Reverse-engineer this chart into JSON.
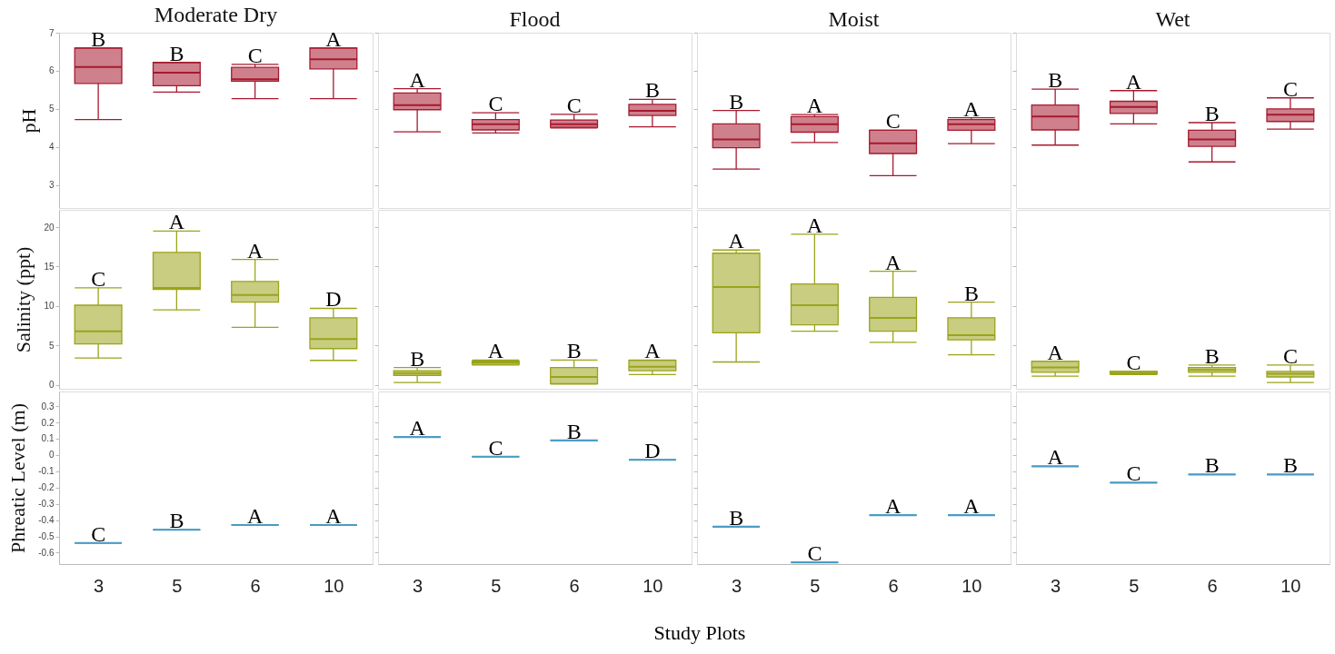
{
  "chart_data": [
    {
      "type": "box",
      "title": "Moderate Dry",
      "ylabel": "pH",
      "categories": [
        "3",
        "5",
        "6",
        "10"
      ],
      "ylim": [
        2.4,
        7
      ],
      "yticks": [
        3,
        4,
        5,
        6,
        7
      ],
      "tick_labels": "y",
      "series": [
        {
          "color": "#a6192e",
          "boxes": [
            {
              "low": 4.72,
              "q1": 5.67,
              "median": 6.1,
              "q3": 6.6,
              "high": 6.6
            },
            {
              "low": 5.44,
              "q1": 5.61,
              "median": 5.95,
              "q3": 6.22,
              "high": 6.22
            },
            {
              "low": 5.27,
              "q1": 5.73,
              "median": 5.78,
              "q3": 6.09,
              "high": 6.17
            },
            {
              "low": 5.27,
              "q1": 6.05,
              "median": 6.3,
              "q3": 6.6,
              "high": 6.6
            }
          ]
        }
      ],
      "annotations": [
        {
          "text": "B",
          "x": "3",
          "y": 6.6
        },
        {
          "text": "B",
          "x": "5",
          "y": 6.22
        },
        {
          "text": "C",
          "x": "6",
          "y": 6.17
        },
        {
          "text": "A",
          "x": "10",
          "y": 6.6
        }
      ]
    },
    {
      "type": "box",
      "title": "Flood",
      "categories": [
        "3",
        "5",
        "6",
        "10"
      ],
      "ylim": [
        2.4,
        7
      ],
      "yticks": [
        3,
        4,
        5,
        6,
        7
      ],
      "tick_labels": false,
      "series": [
        {
          "color": "#a6192e",
          "boxes": [
            {
              "low": 4.4,
              "q1": 4.98,
              "median": 5.1,
              "q3": 5.42,
              "high": 5.53
            },
            {
              "low": 4.37,
              "q1": 4.45,
              "median": 4.6,
              "q3": 4.72,
              "high": 4.9
            },
            {
              "low": 4.5,
              "q1": 4.52,
              "median": 4.6,
              "q3": 4.71,
              "high": 4.86
            },
            {
              "low": 4.53,
              "q1": 4.83,
              "median": 4.95,
              "q3": 5.12,
              "high": 5.25
            }
          ]
        }
      ],
      "annotations": [
        {
          "text": "A",
          "x": "3",
          "y": 5.53
        },
        {
          "text": "C",
          "x": "5",
          "y": 4.9
        },
        {
          "text": "C",
          "x": "6",
          "y": 4.86
        },
        {
          "text": "B",
          "x": "10",
          "y": 5.25
        }
      ]
    },
    {
      "type": "box",
      "title": "Moist",
      "categories": [
        "3",
        "5",
        "6",
        "10"
      ],
      "ylim": [
        2.4,
        7
      ],
      "yticks": [
        3,
        4,
        5,
        6,
        7
      ],
      "tick_labels": false,
      "series": [
        {
          "color": "#a6192e",
          "boxes": [
            {
              "low": 3.42,
              "q1": 3.98,
              "median": 4.2,
              "q3": 4.61,
              "high": 4.96
            },
            {
              "low": 4.12,
              "q1": 4.39,
              "median": 4.6,
              "q3": 4.8,
              "high": 4.85
            },
            {
              "low": 3.25,
              "q1": 3.83,
              "median": 4.1,
              "q3": 4.44,
              "high": 4.44
            },
            {
              "low": 4.09,
              "q1": 4.44,
              "median": 4.6,
              "q3": 4.72,
              "high": 4.77
            }
          ]
        }
      ],
      "annotations": [
        {
          "text": "B",
          "x": "3",
          "y": 4.96
        },
        {
          "text": "A",
          "x": "5",
          "y": 4.85
        },
        {
          "text": "C",
          "x": "6",
          "y": 4.44
        },
        {
          "text": "A",
          "x": "10",
          "y": 4.77
        }
      ]
    },
    {
      "type": "box",
      "title": "Wet",
      "categories": [
        "3",
        "5",
        "6",
        "10"
      ],
      "ylim": [
        2.4,
        7
      ],
      "yticks": [
        3,
        4,
        5,
        6,
        7
      ],
      "tick_labels": false,
      "series": [
        {
          "color": "#a6192e",
          "boxes": [
            {
              "low": 4.05,
              "q1": 4.45,
              "median": 4.8,
              "q3": 5.1,
              "high": 5.52
            },
            {
              "low": 4.61,
              "q1": 4.88,
              "median": 5.05,
              "q3": 5.2,
              "high": 5.48
            },
            {
              "low": 3.61,
              "q1": 4.02,
              "median": 4.2,
              "q3": 4.44,
              "high": 4.64
            },
            {
              "low": 4.47,
              "q1": 4.67,
              "median": 4.85,
              "q3": 5.0,
              "high": 5.29
            }
          ]
        }
      ],
      "annotations": [
        {
          "text": "B",
          "x": "3",
          "y": 5.52
        },
        {
          "text": "A",
          "x": "5",
          "y": 5.48
        },
        {
          "text": "B",
          "x": "6",
          "y": 4.64
        },
        {
          "text": "C",
          "x": "10",
          "y": 5.29
        }
      ]
    },
    {
      "type": "box",
      "ylabel": "Salinity (ppt)",
      "categories": [
        "3",
        "5",
        "6",
        "10"
      ],
      "ylim": [
        -0.5,
        22.2
      ],
      "yticks": [
        0,
        5,
        10,
        15,
        20
      ],
      "tick_labels": "y",
      "series": [
        {
          "color": "#9aa41a",
          "boxes": [
            {
              "low": 3.4,
              "q1": 5.2,
              "median": 6.8,
              "q3": 10.1,
              "high": 12.3
            },
            {
              "low": 9.5,
              "q1": 12.1,
              "median": 12.3,
              "q3": 16.8,
              "high": 19.5
            },
            {
              "low": 7.3,
              "q1": 10.5,
              "median": 11.4,
              "q3": 13.1,
              "high": 15.9
            },
            {
              "low": 3.1,
              "q1": 4.6,
              "median": 5.8,
              "q3": 8.5,
              "high": 9.7
            }
          ]
        }
      ],
      "annotations": [
        {
          "text": "C",
          "x": "3",
          "y": 12.3
        },
        {
          "text": "A",
          "x": "5",
          "y": 19.5
        },
        {
          "text": "A",
          "x": "6",
          "y": 15.9
        },
        {
          "text": "D",
          "x": "10",
          "y": 9.7
        }
      ]
    },
    {
      "type": "box",
      "categories": [
        "3",
        "5",
        "6",
        "10"
      ],
      "ylim": [
        -0.5,
        22.2
      ],
      "yticks": [
        0,
        5,
        10,
        15,
        20
      ],
      "tick_labels": false,
      "series": [
        {
          "color": "#9aa41a",
          "boxes": [
            {
              "low": 0.3,
              "q1": 1.2,
              "median": 1.5,
              "q3": 1.8,
              "high": 2.2
            },
            {
              "low": 2.5,
              "q1": 2.6,
              "median": 2.85,
              "q3": 3.0,
              "high": 3.15
            },
            {
              "low": 0.1,
              "q1": 0.15,
              "median": 1.0,
              "q3": 2.2,
              "high": 3.15
            },
            {
              "low": 1.3,
              "q1": 1.8,
              "median": 2.3,
              "q3": 3.1,
              "high": 3.15
            }
          ]
        }
      ],
      "annotations": [
        {
          "text": "B",
          "x": "3",
          "y": 2.2
        },
        {
          "text": "A",
          "x": "5",
          "y": 3.15
        },
        {
          "text": "B",
          "x": "6",
          "y": 3.15
        },
        {
          "text": "A",
          "x": "10",
          "y": 3.15
        }
      ]
    },
    {
      "type": "box",
      "categories": [
        "3",
        "5",
        "6",
        "10"
      ],
      "ylim": [
        -0.5,
        22.2
      ],
      "yticks": [
        0,
        5,
        10,
        15,
        20
      ],
      "tick_labels": false,
      "series": [
        {
          "color": "#9aa41a",
          "boxes": [
            {
              "low": 2.9,
              "q1": 6.6,
              "median": 12.4,
              "q3": 16.7,
              "high": 17.1
            },
            {
              "low": 6.8,
              "q1": 7.6,
              "median": 10.1,
              "q3": 12.8,
              "high": 19.1
            },
            {
              "low": 5.4,
              "q1": 6.8,
              "median": 8.5,
              "q3": 11.1,
              "high": 14.4
            },
            {
              "low": 3.8,
              "q1": 5.7,
              "median": 6.3,
              "q3": 8.5,
              "high": 10.5
            }
          ]
        }
      ],
      "annotations": [
        {
          "text": "A",
          "x": "3",
          "y": 17.1
        },
        {
          "text": "A",
          "x": "5",
          "y": 19.1
        },
        {
          "text": "A",
          "x": "6",
          "y": 14.4
        },
        {
          "text": "B",
          "x": "10",
          "y": 10.5
        }
      ]
    },
    {
      "type": "box",
      "categories": [
        "3",
        "5",
        "6",
        "10"
      ],
      "ylim": [
        -0.5,
        22.2
      ],
      "yticks": [
        0,
        5,
        10,
        15,
        20
      ],
      "tick_labels": false,
      "series": [
        {
          "color": "#9aa41a",
          "boxes": [
            {
              "low": 1.1,
              "q1": 1.6,
              "median": 2.2,
              "q3": 3.0,
              "high": 3.0
            },
            {
              "low": 1.3,
              "q1": 1.4,
              "median": 1.5,
              "q3": 1.7,
              "high": 1.7
            },
            {
              "low": 1.1,
              "q1": 1.6,
              "median": 1.9,
              "q3": 2.2,
              "high": 2.5
            },
            {
              "low": 0.3,
              "q1": 1.0,
              "median": 1.4,
              "q3": 1.7,
              "high": 2.5
            }
          ]
        }
      ],
      "annotations": [
        {
          "text": "A",
          "x": "3",
          "y": 3.0
        },
        {
          "text": "C",
          "x": "5",
          "y": 1.7
        },
        {
          "text": "B",
          "x": "6",
          "y": 2.5
        },
        {
          "text": "C",
          "x": "10",
          "y": 2.5
        }
      ]
    },
    {
      "type": "box",
      "ylabel": "Phreatic Level (m)",
      "categories": [
        "3",
        "5",
        "6",
        "10"
      ],
      "ylim": [
        -0.67,
        0.39
      ],
      "yticks": [
        0.3,
        0.2,
        0.1,
        0,
        -0.1,
        -0.2,
        -0.3,
        -0.4,
        -0.5,
        -0.6
      ],
      "series": [
        {
          "color": "#4a9bc4",
          "boxes": [
            {
              "low": -0.54,
              "q1": -0.54,
              "median": -0.54,
              "q3": -0.54,
              "high": -0.54
            },
            {
              "low": -0.46,
              "q1": -0.46,
              "median": -0.46,
              "q3": -0.46,
              "high": -0.46
            },
            {
              "low": -0.43,
              "q1": -0.43,
              "median": -0.43,
              "q3": -0.43,
              "high": -0.43
            },
            {
              "low": -0.43,
              "q1": -0.43,
              "median": -0.43,
              "q3": -0.43,
              "high": -0.43
            }
          ]
        }
      ],
      "annotations": [
        {
          "text": "C",
          "x": "3",
          "y": -0.54
        },
        {
          "text": "B",
          "x": "5",
          "y": -0.46
        },
        {
          "text": "A",
          "x": "6",
          "y": -0.43
        },
        {
          "text": "A",
          "x": "10",
          "y": -0.43
        }
      ]
    },
    {
      "type": "box",
      "xlabel": "Study Plots",
      "categories": [
        "3",
        "5",
        "6",
        "10"
      ],
      "ylim": [
        -0.67,
        0.39
      ],
      "yticks": [
        0.3,
        0.2,
        0.1,
        0,
        -0.1,
        -0.2,
        -0.3,
        -0.4,
        -0.5,
        -0.6
      ],
      "tick_labels": "x",
      "series": [
        {
          "color": "#4a9bc4",
          "boxes": [
            {
              "low": 0.11,
              "q1": 0.11,
              "median": 0.11,
              "q3": 0.11,
              "high": 0.11
            },
            {
              "low": -0.01,
              "q1": -0.01,
              "median": -0.01,
              "q3": -0.01,
              "high": -0.01
            },
            {
              "low": 0.09,
              "q1": 0.09,
              "median": 0.09,
              "q3": 0.09,
              "high": 0.09
            },
            {
              "low": -0.03,
              "q1": -0.03,
              "median": -0.03,
              "q3": -0.03,
              "high": -0.03
            }
          ]
        }
      ],
      "annotations": [
        {
          "text": "A",
          "x": "3",
          "y": 0.11
        },
        {
          "text": "C",
          "x": "5",
          "y": -0.01
        },
        {
          "text": "B",
          "x": "6",
          "y": 0.09
        },
        {
          "text": "D",
          "x": "10",
          "y": -0.03
        }
      ]
    },
    {
      "type": "box",
      "categories": [
        "3",
        "5",
        "6",
        "10"
      ],
      "ylim": [
        -0.67,
        0.39
      ],
      "yticks": [
        0.3,
        0.2,
        0.1,
        0,
        -0.1,
        -0.2,
        -0.3,
        -0.4,
        -0.5,
        -0.6
      ],
      "tick_labels": "x",
      "series": [
        {
          "color": "#4a9bc4",
          "boxes": [
            {
              "low": -0.44,
              "q1": -0.44,
              "median": -0.44,
              "q3": -0.44,
              "high": -0.44
            },
            {
              "low": -0.66,
              "q1": -0.66,
              "median": -0.66,
              "q3": -0.66,
              "high": -0.66
            },
            {
              "low": -0.37,
              "q1": -0.37,
              "median": -0.37,
              "q3": -0.37,
              "high": -0.37
            },
            {
              "low": -0.37,
              "q1": -0.37,
              "median": -0.37,
              "q3": -0.37,
              "high": -0.37
            }
          ]
        }
      ],
      "annotations": [
        {
          "text": "B",
          "x": "3",
          "y": -0.44
        },
        {
          "text": "C",
          "x": "5",
          "y": -0.66
        },
        {
          "text": "A",
          "x": "6",
          "y": -0.37
        },
        {
          "text": "A",
          "x": "10",
          "y": -0.37
        }
      ]
    },
    {
      "type": "box",
      "categories": [
        "3",
        "5",
        "6",
        "10"
      ],
      "ylim": [
        -0.67,
        0.39
      ],
      "yticks": [
        0.3,
        0.2,
        0.1,
        0,
        -0.1,
        -0.2,
        -0.3,
        -0.4,
        -0.5,
        -0.6
      ],
      "tick_labels": "x",
      "series": [
        {
          "color": "#4a9bc4",
          "boxes": [
            {
              "low": -0.07,
              "q1": -0.07,
              "median": -0.07,
              "q3": -0.07,
              "high": -0.07
            },
            {
              "low": -0.17,
              "q1": -0.17,
              "median": -0.17,
              "q3": -0.17,
              "high": -0.17
            },
            {
              "low": -0.12,
              "q1": -0.12,
              "median": -0.12,
              "q3": -0.12,
              "high": -0.12
            },
            {
              "low": -0.12,
              "q1": -0.12,
              "median": -0.12,
              "q3": -0.12,
              "high": -0.12
            }
          ]
        }
      ],
      "annotations": [
        {
          "text": "A",
          "x": "3",
          "y": -0.07
        },
        {
          "text": "C",
          "x": "5",
          "y": -0.17
        },
        {
          "text": "B",
          "x": "6",
          "y": -0.12
        },
        {
          "text": "B",
          "x": "10",
          "y": -0.12
        }
      ]
    }
  ]
}
